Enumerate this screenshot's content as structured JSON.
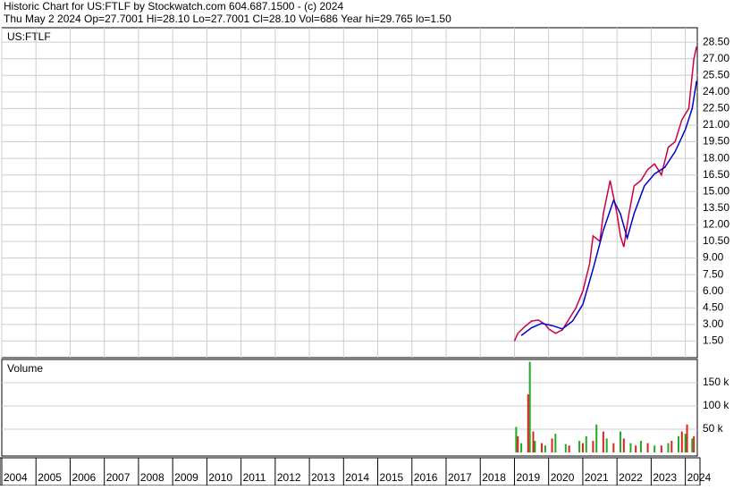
{
  "header": {
    "line1": "Historic Chart for US:FTLF by Stockwatch.com 604.687.1500 - (c) 2024",
    "line2": "Thu May  2 2024   Op=27.7001  Hi=28.10  Lo=27.7001  Cl=28.10  Vol=686  Year hi=29.765  lo=1.50"
  },
  "chart_data": [
    {
      "type": "line",
      "title": "US:FTLF",
      "xlim": [
        2004,
        2024.35
      ],
      "ylim": [
        0,
        29.8
      ],
      "xticks": [
        2004,
        2005,
        2006,
        2007,
        2008,
        2009,
        2010,
        2011,
        2012,
        2013,
        2014,
        2015,
        2016,
        2017,
        2018,
        2019,
        2020,
        2021,
        2022,
        2023,
        2024
      ],
      "yticks": [
        {
          "value": 1.5,
          "label": "1.50"
        },
        {
          "value": 3,
          "label": "3.00"
        },
        {
          "value": 4.5,
          "label": "4.50"
        },
        {
          "value": 6,
          "label": "6.00"
        },
        {
          "value": 7.5,
          "label": "7.50"
        },
        {
          "value": 9,
          "label": "9.00"
        },
        {
          "value": 10.5,
          "label": "10.50"
        },
        {
          "value": 12,
          "label": "12.00"
        },
        {
          "value": 13.5,
          "label": "13.50"
        },
        {
          "value": 15,
          "label": "15.00"
        },
        {
          "value": 16.5,
          "label": "16.50"
        },
        {
          "value": 18,
          "label": "18.00"
        },
        {
          "value": 19.5,
          "label": "19.50"
        },
        {
          "value": 21,
          "label": "21.00"
        },
        {
          "value": 22.5,
          "label": "22.50"
        },
        {
          "value": 24,
          "label": "24.00"
        },
        {
          "value": 25.5,
          "label": "25.50"
        },
        {
          "value": 27,
          "label": "27.00"
        },
        {
          "value": 28.5,
          "label": "28.50"
        }
      ],
      "grid": true,
      "series": [
        {
          "color": "#cc0044",
          "x": [
            2019.0,
            2019.1,
            2019.3,
            2019.5,
            2019.7,
            2019.9,
            2020.0,
            2020.2,
            2020.4,
            2020.6,
            2020.8,
            2021.0,
            2021.2,
            2021.3,
            2021.5,
            2021.6,
            2021.8,
            2021.9,
            2022.0,
            2022.1,
            2022.2,
            2022.35,
            2022.5,
            2022.7,
            2022.9,
            2023.1,
            2023.3,
            2023.5,
            2023.7,
            2023.9,
            2024.1,
            2024.25,
            2024.33
          ],
          "values": [
            1.5,
            2.2,
            2.8,
            3.3,
            3.4,
            3.0,
            2.6,
            2.2,
            2.5,
            3.5,
            4.5,
            6.0,
            8.5,
            11.0,
            10.5,
            13.0,
            16.0,
            14.5,
            13.0,
            11.0,
            10.0,
            13.0,
            15.5,
            16.0,
            17.0,
            17.5,
            16.5,
            19.0,
            19.5,
            21.5,
            22.5,
            27.0,
            28.1
          ]
        },
        {
          "color": "#0000cc",
          "x": [
            2019.2,
            2019.5,
            2019.8,
            2020.1,
            2020.4,
            2020.7,
            2021.0,
            2021.3,
            2021.6,
            2021.9,
            2022.1,
            2022.3,
            2022.5,
            2022.8,
            2023.1,
            2023.4,
            2023.7,
            2024.0,
            2024.2,
            2024.33
          ],
          "values": [
            2.0,
            2.7,
            3.1,
            2.9,
            2.6,
            3.3,
            4.8,
            8.0,
            11.5,
            14.2,
            13.0,
            10.8,
            13.0,
            15.5,
            16.6,
            17.2,
            18.6,
            20.6,
            22.5,
            25.0
          ]
        }
      ]
    },
    {
      "type": "bar",
      "title": "Volume",
      "xlim": [
        2004,
        2024.35
      ],
      "ylim": [
        0,
        200000
      ],
      "xticks": [
        2004,
        2005,
        2006,
        2007,
        2008,
        2009,
        2010,
        2011,
        2012,
        2013,
        2014,
        2015,
        2016,
        2017,
        2018,
        2019,
        2020,
        2021,
        2022,
        2023,
        2024
      ],
      "yticks": [
        {
          "value": 50000,
          "label": "50 k"
        },
        {
          "value": 100000,
          "label": "100 k"
        },
        {
          "value": 150000,
          "label": "150 k"
        }
      ],
      "series": [
        {
          "color": "#22aa22",
          "x": [
            2019.05,
            2019.2,
            2019.45,
            2019.6,
            2019.9,
            2020.2,
            2020.5,
            2020.9,
            2021.1,
            2021.4,
            2021.7,
            2022.1,
            2022.4,
            2022.7,
            2023.1,
            2023.5,
            2023.8,
            2024.0,
            2024.2
          ],
          "values": [
            55000,
            20000,
            195000,
            25000,
            15000,
            40000,
            18000,
            25000,
            35000,
            60000,
            30000,
            45000,
            20000,
            25000,
            15000,
            20000,
            35000,
            40000,
            30000
          ]
        },
        {
          "color": "#dd2222",
          "x": [
            2019.1,
            2019.4,
            2019.55,
            2019.8,
            2020.1,
            2020.6,
            2021.0,
            2021.3,
            2021.6,
            2021.9,
            2022.2,
            2022.55,
            2022.9,
            2023.3,
            2023.6,
            2023.9,
            2024.05,
            2024.25
          ],
          "values": [
            35000,
            125000,
            45000,
            20000,
            30000,
            15000,
            20000,
            25000,
            45000,
            20000,
            30000,
            15000,
            20000,
            15000,
            25000,
            45000,
            60000,
            35000
          ]
        }
      ]
    }
  ]
}
